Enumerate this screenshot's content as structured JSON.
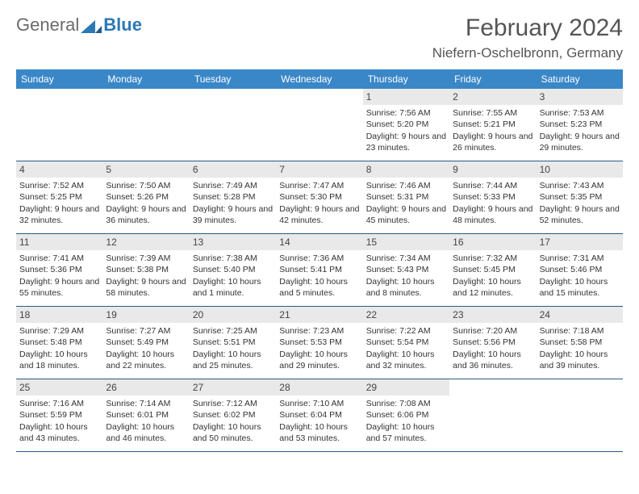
{
  "logo": {
    "general": "General",
    "blue": "Blue"
  },
  "title": "February 2024",
  "location": "Niefern-Oschelbronn, Germany",
  "colors": {
    "header_bg": "#3a87c8",
    "header_text": "#ffffff",
    "daynum_bg": "#e9e9e9",
    "border": "#2a5a85",
    "logo_gray": "#6b6b6b",
    "logo_blue": "#2a79b5"
  },
  "days_of_week": [
    "Sunday",
    "Monday",
    "Tuesday",
    "Wednesday",
    "Thursday",
    "Friday",
    "Saturday"
  ],
  "leading_blanks": 4,
  "days": [
    {
      "n": 1,
      "sr": "7:56 AM",
      "ss": "5:20 PM",
      "dl": "9 hours and 23 minutes."
    },
    {
      "n": 2,
      "sr": "7:55 AM",
      "ss": "5:21 PM",
      "dl": "9 hours and 26 minutes."
    },
    {
      "n": 3,
      "sr": "7:53 AM",
      "ss": "5:23 PM",
      "dl": "9 hours and 29 minutes."
    },
    {
      "n": 4,
      "sr": "7:52 AM",
      "ss": "5:25 PM",
      "dl": "9 hours and 32 minutes."
    },
    {
      "n": 5,
      "sr": "7:50 AM",
      "ss": "5:26 PM",
      "dl": "9 hours and 36 minutes."
    },
    {
      "n": 6,
      "sr": "7:49 AM",
      "ss": "5:28 PM",
      "dl": "9 hours and 39 minutes."
    },
    {
      "n": 7,
      "sr": "7:47 AM",
      "ss": "5:30 PM",
      "dl": "9 hours and 42 minutes."
    },
    {
      "n": 8,
      "sr": "7:46 AM",
      "ss": "5:31 PM",
      "dl": "9 hours and 45 minutes."
    },
    {
      "n": 9,
      "sr": "7:44 AM",
      "ss": "5:33 PM",
      "dl": "9 hours and 48 minutes."
    },
    {
      "n": 10,
      "sr": "7:43 AM",
      "ss": "5:35 PM",
      "dl": "9 hours and 52 minutes."
    },
    {
      "n": 11,
      "sr": "7:41 AM",
      "ss": "5:36 PM",
      "dl": "9 hours and 55 minutes."
    },
    {
      "n": 12,
      "sr": "7:39 AM",
      "ss": "5:38 PM",
      "dl": "9 hours and 58 minutes."
    },
    {
      "n": 13,
      "sr": "7:38 AM",
      "ss": "5:40 PM",
      "dl": "10 hours and 1 minute."
    },
    {
      "n": 14,
      "sr": "7:36 AM",
      "ss": "5:41 PM",
      "dl": "10 hours and 5 minutes."
    },
    {
      "n": 15,
      "sr": "7:34 AM",
      "ss": "5:43 PM",
      "dl": "10 hours and 8 minutes."
    },
    {
      "n": 16,
      "sr": "7:32 AM",
      "ss": "5:45 PM",
      "dl": "10 hours and 12 minutes."
    },
    {
      "n": 17,
      "sr": "7:31 AM",
      "ss": "5:46 PM",
      "dl": "10 hours and 15 minutes."
    },
    {
      "n": 18,
      "sr": "7:29 AM",
      "ss": "5:48 PM",
      "dl": "10 hours and 18 minutes."
    },
    {
      "n": 19,
      "sr": "7:27 AM",
      "ss": "5:49 PM",
      "dl": "10 hours and 22 minutes."
    },
    {
      "n": 20,
      "sr": "7:25 AM",
      "ss": "5:51 PM",
      "dl": "10 hours and 25 minutes."
    },
    {
      "n": 21,
      "sr": "7:23 AM",
      "ss": "5:53 PM",
      "dl": "10 hours and 29 minutes."
    },
    {
      "n": 22,
      "sr": "7:22 AM",
      "ss": "5:54 PM",
      "dl": "10 hours and 32 minutes."
    },
    {
      "n": 23,
      "sr": "7:20 AM",
      "ss": "5:56 PM",
      "dl": "10 hours and 36 minutes."
    },
    {
      "n": 24,
      "sr": "7:18 AM",
      "ss": "5:58 PM",
      "dl": "10 hours and 39 minutes."
    },
    {
      "n": 25,
      "sr": "7:16 AM",
      "ss": "5:59 PM",
      "dl": "10 hours and 43 minutes."
    },
    {
      "n": 26,
      "sr": "7:14 AM",
      "ss": "6:01 PM",
      "dl": "10 hours and 46 minutes."
    },
    {
      "n": 27,
      "sr": "7:12 AM",
      "ss": "6:02 PM",
      "dl": "10 hours and 50 minutes."
    },
    {
      "n": 28,
      "sr": "7:10 AM",
      "ss": "6:04 PM",
      "dl": "10 hours and 53 minutes."
    },
    {
      "n": 29,
      "sr": "7:08 AM",
      "ss": "6:06 PM",
      "dl": "10 hours and 57 minutes."
    }
  ],
  "labels": {
    "sunrise": "Sunrise:",
    "sunset": "Sunset:",
    "daylight": "Daylight:"
  }
}
